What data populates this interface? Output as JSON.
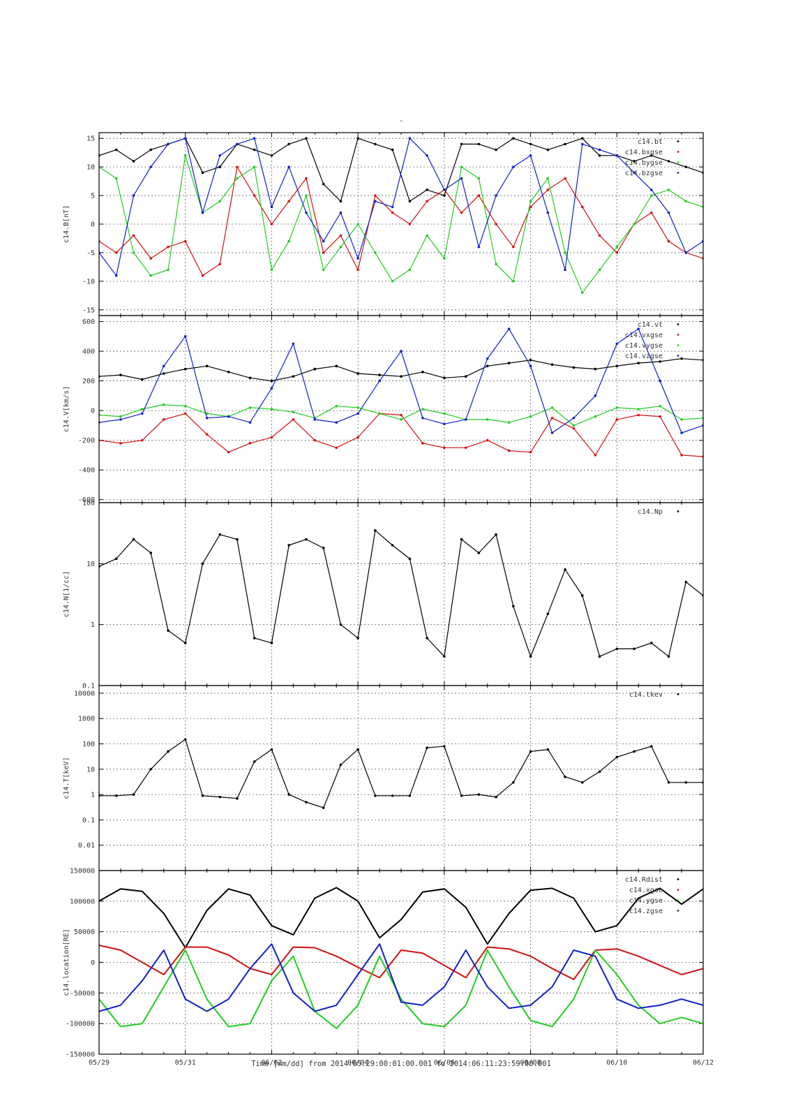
{
  "page": {
    "title": "-",
    "x_axis_label": "Time [mm/dd]  from 2014:05:29:00:01:00.001  to  2014:06:11:23:59:00.001"
  },
  "colors": {
    "black": "#000000",
    "red": "#d11010",
    "green": "#22cc22",
    "blue": "#1020c8",
    "grid": "#666666"
  },
  "x_axis": {
    "range_days": [
      0,
      14
    ],
    "tick_days": [
      0,
      2,
      4,
      6,
      8,
      10,
      12,
      14
    ],
    "tick_labels": [
      "05/29",
      "05/31",
      "06/02",
      "06/04",
      "06/06",
      "06/08",
      "06/10",
      "06/12"
    ]
  },
  "chart_data": [
    {
      "id": "B",
      "type": "scatter",
      "ylabel": "c14.B[nT]",
      "scale": "linear",
      "ylim": [
        -16,
        16
      ],
      "yticks": [
        -15,
        -10,
        -5,
        0,
        5,
        10,
        15
      ],
      "legend_position": "top-right",
      "series": [
        {
          "name": "c14.bt",
          "color": "black",
          "x": [
            0.0,
            0.4,
            0.8,
            1.2,
            1.6,
            2.0,
            2.4,
            2.8,
            3.2,
            3.6,
            4.0,
            4.4,
            4.8,
            5.2,
            5.6,
            6.0,
            6.4,
            6.8,
            7.2,
            7.6,
            8.0,
            8.4,
            8.8,
            9.2,
            9.6,
            10.0,
            10.4,
            10.8,
            11.2,
            11.6,
            12.0,
            12.4,
            12.8,
            13.2,
            13.6,
            14.0
          ],
          "y": [
            12,
            13,
            11,
            13,
            14,
            15,
            9,
            10,
            14,
            13,
            12,
            14,
            15,
            7,
            4,
            15,
            14,
            13,
            4,
            6,
            5,
            14,
            14,
            13,
            15,
            14,
            13,
            14,
            15,
            12,
            12,
            11,
            12,
            11,
            10,
            9
          ]
        },
        {
          "name": "c14.bxgse",
          "color": "red",
          "x": [
            0.0,
            0.4,
            0.8,
            1.2,
            1.6,
            2.0,
            2.4,
            2.8,
            3.2,
            3.6,
            4.0,
            4.4,
            4.8,
            5.2,
            5.6,
            6.0,
            6.4,
            6.8,
            7.2,
            7.6,
            8.0,
            8.4,
            8.8,
            9.2,
            9.6,
            10.0,
            10.4,
            10.8,
            11.2,
            11.6,
            12.0,
            12.4,
            12.8,
            13.2,
            13.6,
            14.0
          ],
          "y": [
            -3,
            -5,
            -2,
            -6,
            -4,
            -3,
            -9,
            -7,
            10,
            5,
            0,
            4,
            8,
            -5,
            -2,
            -8,
            5,
            2,
            0,
            4,
            6,
            2,
            5,
            0,
            -4,
            3,
            6,
            8,
            3,
            -2,
            -5,
            0,
            2,
            -3,
            -5,
            -6
          ]
        },
        {
          "name": "c14.bygse",
          "color": "green",
          "x": [
            0.0,
            0.4,
            0.8,
            1.2,
            1.6,
            2.0,
            2.4,
            2.8,
            3.2,
            3.6,
            4.0,
            4.4,
            4.8,
            5.2,
            5.6,
            6.0,
            6.4,
            6.8,
            7.2,
            7.6,
            8.0,
            8.4,
            8.8,
            9.2,
            9.6,
            10.0,
            10.4,
            10.8,
            11.2,
            11.6,
            12.0,
            12.4,
            12.8,
            13.2,
            13.6,
            14.0
          ],
          "y": [
            10,
            8,
            -5,
            -9,
            -8,
            12,
            2,
            4,
            8,
            10,
            -8,
            -3,
            5,
            -8,
            -4,
            0,
            -5,
            -10,
            -8,
            -2,
            -6,
            10,
            8,
            -7,
            -10,
            4,
            8,
            -5,
            -12,
            -8,
            -4,
            0,
            5,
            6,
            4,
            3
          ]
        },
        {
          "name": "c14.bzgse",
          "color": "blue",
          "x": [
            0.0,
            0.4,
            0.8,
            1.2,
            1.6,
            2.0,
            2.4,
            2.8,
            3.2,
            3.6,
            4.0,
            4.4,
            4.8,
            5.2,
            5.6,
            6.0,
            6.4,
            6.8,
            7.2,
            7.6,
            8.0,
            8.4,
            8.8,
            9.2,
            9.6,
            10.0,
            10.4,
            10.8,
            11.2,
            11.6,
            12.0,
            12.4,
            12.8,
            13.2,
            13.6,
            14.0
          ],
          "y": [
            -5,
            -9,
            5,
            10,
            14,
            15,
            2,
            12,
            14,
            15,
            3,
            10,
            2,
            -3,
            2,
            -6,
            4,
            3,
            15,
            12,
            6,
            8,
            -4,
            5,
            10,
            12,
            2,
            -8,
            14,
            13,
            12,
            9,
            6,
            2,
            -5,
            -3
          ]
        }
      ]
    },
    {
      "id": "V",
      "type": "scatter",
      "ylabel": "c14.V[km/s]",
      "scale": "linear",
      "ylim": [
        -620,
        640
      ],
      "yticks": [
        -600,
        -400,
        -200,
        0,
        200,
        400,
        600
      ],
      "legend_position": "top-right",
      "series": [
        {
          "name": "c14.vt",
          "color": "black",
          "x": [
            0.0,
            0.5,
            1.0,
            1.5,
            2.0,
            2.5,
            3.0,
            3.5,
            4.0,
            4.5,
            5.0,
            5.5,
            6.0,
            6.5,
            7.0,
            7.5,
            8.0,
            8.5,
            9.0,
            9.5,
            10.0,
            10.5,
            11.0,
            11.5,
            12.0,
            12.5,
            13.0,
            13.5,
            14.0
          ],
          "y": [
            230,
            240,
            210,
            250,
            280,
            300,
            260,
            220,
            200,
            230,
            280,
            300,
            250,
            240,
            230,
            260,
            220,
            230,
            300,
            320,
            340,
            310,
            290,
            280,
            300,
            320,
            330,
            350,
            340
          ]
        },
        {
          "name": "c14.vxgse",
          "color": "red",
          "x": [
            0.0,
            0.5,
            1.0,
            1.5,
            2.0,
            2.5,
            3.0,
            3.5,
            4.0,
            4.5,
            5.0,
            5.5,
            6.0,
            6.5,
            7.0,
            7.5,
            8.0,
            8.5,
            9.0,
            9.5,
            10.0,
            10.5,
            11.0,
            11.5,
            12.0,
            12.5,
            13.0,
            13.5,
            14.0
          ],
          "y": [
            -200,
            -220,
            -200,
            -60,
            -20,
            -160,
            -280,
            -220,
            -180,
            -60,
            -200,
            -250,
            -180,
            -20,
            -30,
            -220,
            -250,
            -250,
            -200,
            -270,
            -280,
            -50,
            -120,
            -300,
            -60,
            -30,
            -40,
            -300,
            -310
          ]
        },
        {
          "name": "c14.vygse",
          "color": "green",
          "x": [
            0.0,
            0.5,
            1.0,
            1.5,
            2.0,
            2.5,
            3.0,
            3.5,
            4.0,
            4.5,
            5.0,
            5.5,
            6.0,
            6.5,
            7.0,
            7.5,
            8.0,
            8.5,
            9.0,
            9.5,
            10.0,
            10.5,
            11.0,
            11.5,
            12.0,
            12.5,
            13.0,
            13.5,
            14.0
          ],
          "y": [
            -30,
            -40,
            10,
            40,
            30,
            -20,
            -40,
            20,
            10,
            -10,
            -50,
            30,
            20,
            -20,
            -60,
            10,
            -20,
            -60,
            -60,
            -80,
            -40,
            20,
            -100,
            -40,
            20,
            10,
            30,
            -60,
            -50
          ]
        },
        {
          "name": "c14.vzgse",
          "color": "blue",
          "x": [
            0.0,
            0.5,
            1.0,
            1.5,
            2.0,
            2.5,
            3.0,
            3.5,
            4.0,
            4.5,
            5.0,
            5.5,
            6.0,
            6.5,
            7.0,
            7.5,
            8.0,
            8.5,
            9.0,
            9.5,
            10.0,
            10.5,
            11.0,
            11.5,
            12.0,
            12.5,
            13.0,
            13.5,
            14.0
          ],
          "y": [
            -80,
            -60,
            -20,
            300,
            500,
            -50,
            -40,
            -80,
            150,
            450,
            -60,
            -80,
            -20,
            200,
            400,
            -50,
            -90,
            -60,
            350,
            550,
            300,
            -150,
            -50,
            100,
            450,
            550,
            200,
            -150,
            -100
          ]
        }
      ]
    },
    {
      "id": "N",
      "type": "scatter",
      "ylabel": "c14.N[1/cc]",
      "scale": "log",
      "ylim": [
        0.1,
        100
      ],
      "yticks": [
        0.1,
        1,
        10,
        100
      ],
      "legend_position": "top-right",
      "series": [
        {
          "name": "c14.Np",
          "color": "black",
          "x": [
            0.0,
            0.4,
            0.8,
            1.2,
            1.6,
            2.0,
            2.4,
            2.8,
            3.2,
            3.6,
            4.0,
            4.4,
            4.8,
            5.2,
            5.6,
            6.0,
            6.4,
            6.8,
            7.2,
            7.6,
            8.0,
            8.4,
            8.8,
            9.2,
            9.6,
            10.0,
            10.4,
            10.8,
            11.2,
            11.6,
            12.0,
            12.4,
            12.8,
            13.2,
            13.6,
            14.0
          ],
          "y": [
            9,
            12,
            25,
            15,
            0.8,
            0.5,
            10,
            30,
            25,
            0.6,
            0.5,
            20,
            25,
            18,
            1.0,
            0.6,
            35,
            20,
            12,
            0.6,
            0.3,
            25,
            15,
            30,
            2,
            0.3,
            1.5,
            8,
            3,
            0.3,
            0.4,
            0.4,
            0.5,
            0.3,
            5,
            3
          ]
        }
      ]
    },
    {
      "id": "T",
      "type": "scatter",
      "ylabel": "c14.T[keV]",
      "scale": "log",
      "ylim": [
        0.001,
        20000
      ],
      "yticks": [
        0.01,
        0.1,
        1,
        10,
        100,
        1000,
        10000
      ],
      "legend_position": "top-right",
      "series": [
        {
          "name": "c14.tkev",
          "color": "black",
          "x": [
            0.0,
            0.4,
            0.8,
            1.2,
            1.6,
            2.0,
            2.4,
            2.8,
            3.2,
            3.6,
            4.0,
            4.4,
            4.8,
            5.2,
            5.6,
            6.0,
            6.4,
            6.8,
            7.2,
            7.6,
            8.0,
            8.4,
            8.8,
            9.2,
            9.6,
            10.0,
            10.4,
            10.8,
            11.2,
            11.6,
            12.0,
            12.4,
            12.8,
            13.2,
            13.6,
            14.0
          ],
          "y": [
            0.9,
            0.9,
            1.0,
            10,
            50,
            150,
            0.9,
            0.8,
            0.7,
            20,
            60,
            1.0,
            0.5,
            0.3,
            15,
            60,
            0.9,
            0.9,
            0.9,
            70,
            80,
            0.9,
            1.0,
            0.8,
            3,
            50,
            60,
            5,
            3,
            8,
            30,
            50,
            80,
            3,
            3,
            3
          ]
        }
      ]
    },
    {
      "id": "location",
      "type": "line",
      "ylabel": "c14.location[RE]",
      "scale": "linear",
      "ylim": [
        -150000,
        150000
      ],
      "yticks": [
        -150000,
        -100000,
        -50000,
        0,
        50000,
        100000,
        150000
      ],
      "legend_position": "top-right",
      "series": [
        {
          "name": "c14.Rdist",
          "color": "black",
          "x": [
            0.0,
            0.5,
            1.0,
            1.5,
            2.0,
            2.5,
            3.0,
            3.5,
            4.0,
            4.5,
            5.0,
            5.5,
            6.0,
            6.5,
            7.0,
            7.5,
            8.0,
            8.5,
            9.0,
            9.5,
            10.0,
            10.5,
            11.0,
            11.5,
            12.0,
            12.5,
            13.0,
            13.5,
            14.0
          ],
          "y": [
            100000,
            120000,
            116000,
            80000,
            24000,
            85000,
            120000,
            110000,
            60000,
            45000,
            105000,
            122000,
            100000,
            40000,
            70000,
            115000,
            120000,
            90000,
            30000,
            80000,
            118000,
            121000,
            105000,
            50000,
            60000,
            105000,
            121000,
            95000,
            120000
          ]
        },
        {
          "name": "c14.xgse",
          "color": "red",
          "x": [
            0.0,
            0.5,
            1.0,
            1.5,
            2.0,
            2.5,
            3.0,
            3.5,
            4.0,
            4.5,
            5.0,
            5.5,
            6.0,
            6.5,
            7.0,
            7.5,
            8.0,
            8.5,
            9.0,
            9.5,
            10.0,
            10.5,
            11.0,
            11.5,
            12.0,
            12.5,
            13.0,
            13.5,
            14.0
          ],
          "y": [
            28000,
            20000,
            0,
            -20000,
            25000,
            25000,
            12000,
            -10000,
            -20000,
            25000,
            24000,
            10000,
            -8000,
            -25000,
            20000,
            15000,
            -5000,
            -25000,
            25000,
            22000,
            10000,
            -10000,
            -28000,
            20000,
            22000,
            10000,
            -5000,
            -20000,
            -10000
          ]
        },
        {
          "name": "c14.ygse",
          "color": "green",
          "x": [
            0.0,
            0.5,
            1.0,
            1.5,
            2.0,
            2.5,
            3.0,
            3.5,
            4.0,
            4.5,
            5.0,
            5.5,
            6.0,
            6.5,
            7.0,
            7.5,
            8.0,
            8.5,
            9.0,
            9.5,
            10.0,
            10.5,
            11.0,
            11.5,
            12.0,
            12.5,
            13.0,
            13.5,
            14.0
          ],
          "y": [
            -60000,
            -105000,
            -100000,
            -40000,
            20000,
            -60000,
            -105000,
            -100000,
            -30000,
            10000,
            -80000,
            -108000,
            -70000,
            10000,
            -60000,
            -100000,
            -105000,
            -70000,
            20000,
            -40000,
            -95000,
            -105000,
            -60000,
            20000,
            -20000,
            -70000,
            -100000,
            -90000,
            -100000
          ]
        },
        {
          "name": "c14.zgse",
          "color": "blue",
          "x": [
            0.0,
            0.5,
            1.0,
            1.5,
            2.0,
            2.5,
            3.0,
            3.5,
            4.0,
            4.5,
            5.0,
            5.5,
            6.0,
            6.5,
            7.0,
            7.5,
            8.0,
            8.5,
            9.0,
            9.5,
            10.0,
            10.5,
            11.0,
            11.5,
            12.0,
            12.5,
            13.0,
            13.5,
            14.0
          ],
          "y": [
            -80000,
            -70000,
            -30000,
            20000,
            -60000,
            -80000,
            -60000,
            -10000,
            30000,
            -50000,
            -80000,
            -70000,
            -20000,
            30000,
            -65000,
            -70000,
            -40000,
            20000,
            -40000,
            -75000,
            -70000,
            -40000,
            20000,
            10000,
            -60000,
            -75000,
            -70000,
            -60000,
            -70000
          ]
        }
      ]
    }
  ]
}
